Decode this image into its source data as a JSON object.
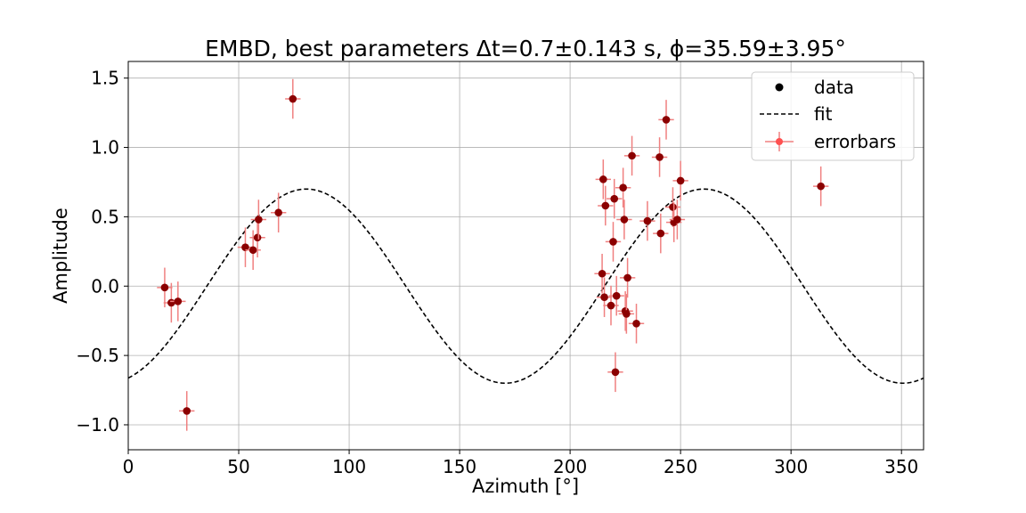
{
  "chart_data": {
    "type": "scatter",
    "title": "EMBD, best parameters Δt=0.7±0.143 s, ϕ=35.59±3.95°",
    "xlabel": "Azimuth [°]",
    "ylabel": "Amplitude",
    "xlim": [
      0,
      360
    ],
    "ylim": [
      -1.18,
      1.62
    ],
    "xticks": [
      0,
      50,
      100,
      150,
      200,
      250,
      300,
      350
    ],
    "xtick_labels": [
      "0",
      "50",
      "100",
      "150",
      "200",
      "250",
      "300",
      "350"
    ],
    "yticks": [
      -1.0,
      -0.5,
      0.0,
      0.5,
      1.0,
      1.5
    ],
    "ytick_labels": [
      "−1.0",
      "−0.5",
      "0.0",
      "0.5",
      "1.0",
      "1.5"
    ],
    "grid": true,
    "legend_position": "top-right",
    "legend": [
      "data",
      "fit",
      "errorbars"
    ],
    "colors": {
      "data": "#8b0000",
      "fit": "#000000",
      "errorbars": "#f08080"
    },
    "fit": {
      "amplitude": 0.7,
      "period": 180,
      "peak_azimuth": 80.6
    },
    "errorbar": {
      "x_err": 3.5,
      "y_err": 0.143
    },
    "points": [
      {
        "x": 16.5,
        "y": -0.01
      },
      {
        "x": 19.5,
        "y": -0.12
      },
      {
        "x": 22.5,
        "y": -0.11
      },
      {
        "x": 26.5,
        "y": -0.9
      },
      {
        "x": 53.0,
        "y": 0.28
      },
      {
        "x": 56.5,
        "y": 0.26
      },
      {
        "x": 58.5,
        "y": 0.35
      },
      {
        "x": 59.0,
        "y": 0.48
      },
      {
        "x": 68.0,
        "y": 0.53
      },
      {
        "x": 74.5,
        "y": 1.35
      },
      {
        "x": 214.5,
        "y": 0.09
      },
      {
        "x": 215.0,
        "y": 0.77
      },
      {
        "x": 215.5,
        "y": -0.08
      },
      {
        "x": 216.0,
        "y": 0.58
      },
      {
        "x": 218.5,
        "y": -0.14
      },
      {
        "x": 219.5,
        "y": 0.32
      },
      {
        "x": 220.0,
        "y": 0.63
      },
      {
        "x": 220.5,
        "y": -0.62
      },
      {
        "x": 221.0,
        "y": -0.07
      },
      {
        "x": 224.0,
        "y": 0.71
      },
      {
        "x": 224.5,
        "y": 0.48
      },
      {
        "x": 225.0,
        "y": -0.18
      },
      {
        "x": 225.5,
        "y": -0.2
      },
      {
        "x": 226.0,
        "y": 0.06
      },
      {
        "x": 228.0,
        "y": 0.94
      },
      {
        "x": 230.0,
        "y": -0.27
      },
      {
        "x": 235.0,
        "y": 0.47
      },
      {
        "x": 240.5,
        "y": 0.93
      },
      {
        "x": 241.0,
        "y": 0.38
      },
      {
        "x": 243.5,
        "y": 1.2
      },
      {
        "x": 246.5,
        "y": 0.57
      },
      {
        "x": 247.0,
        "y": 0.46
      },
      {
        "x": 248.5,
        "y": 0.48
      },
      {
        "x": 250.0,
        "y": 0.76
      },
      {
        "x": 313.5,
        "y": 0.72
      }
    ]
  }
}
